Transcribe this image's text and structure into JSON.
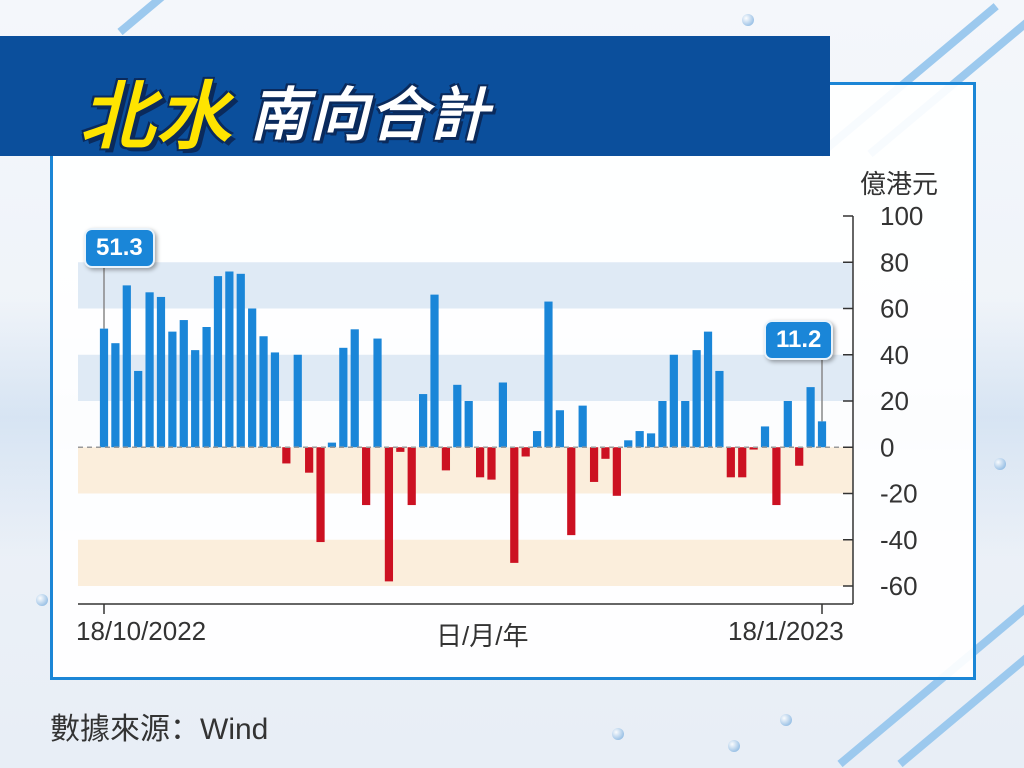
{
  "header": {
    "title_main": "北水",
    "title_sub": "南向合計"
  },
  "chart_data": {
    "type": "bar",
    "ylabel": "億港元",
    "ylim": [
      -60,
      100
    ],
    "yticks": [
      100,
      80,
      60,
      40,
      20,
      0,
      -20,
      -40,
      -60
    ],
    "xlabel": "日/月/年",
    "x_start_label": "18/10/2022",
    "x_end_label": "18/1/2023",
    "colors": {
      "positive": "#1a86d8",
      "negative": "#cc1122"
    },
    "bands": [
      {
        "from": 60,
        "to": 80,
        "color": "#dfeaf5"
      },
      {
        "from": 20,
        "to": 40,
        "color": "#dfeaf5"
      },
      {
        "from": -20,
        "to": 0,
        "color": "#fbeedc"
      },
      {
        "from": -60,
        "to": -40,
        "color": "#fbeedc"
      }
    ],
    "values": [
      51.3,
      45,
      70,
      33,
      67,
      65,
      50,
      55,
      42,
      52,
      74,
      76,
      75,
      60,
      48,
      41,
      -7,
      40,
      -11,
      -41,
      2,
      43,
      51,
      -25,
      47,
      -58,
      -2,
      -25,
      23,
      66,
      -10,
      27,
      20,
      -13,
      -14,
      28,
      -50,
      -4,
      7,
      63,
      16,
      -38,
      18,
      -15,
      -5,
      -21,
      3,
      7,
      6,
      20,
      40,
      20,
      42,
      50,
      33,
      -13,
      -13,
      -1,
      9,
      -25,
      20,
      -8,
      26,
      11.2
    ],
    "annotations": [
      {
        "index": 0,
        "label": "51.3"
      },
      {
        "index": 63,
        "label": "11.2"
      }
    ]
  },
  "footer": {
    "source": "數據來源：Wind"
  }
}
